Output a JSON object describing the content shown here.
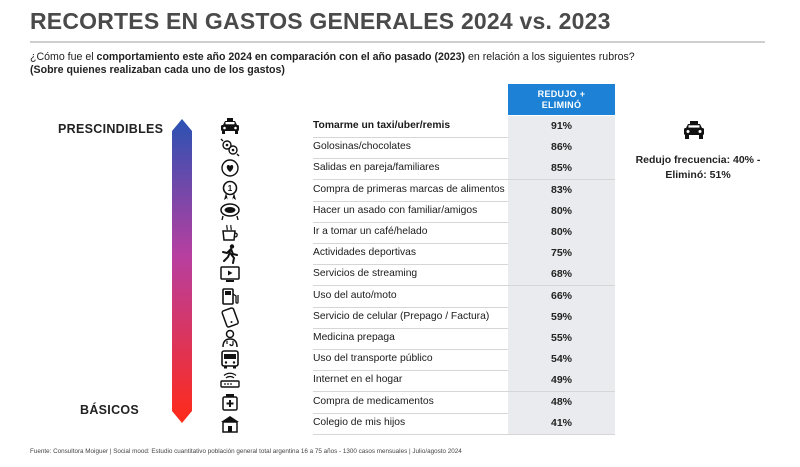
{
  "title": "RECORTES EN GASTOS GENERALES 2024 vs. 2023",
  "question": {
    "prefix": "¿Cómo fue el ",
    "bold": "comportamiento este año 2024 en comparación con el año pasado (2023)",
    "suffix": " en relación a los siguientes rubros?"
  },
  "note": "(Sobre quienes realizaban cada uno de los gastos)",
  "column_header": [
    "REDUJO +",
    "ELIMINÓ"
  ],
  "scale_top_label": "PRESCINDIBLES",
  "scale_bottom_label": "BÁSICOS",
  "side_note": "Redujo frecuencia: 40% - Eliminó: 51%",
  "source": "Fuente: Consultora Moiguer | Social mood: Estudio cuantitativo población general total argentina 16 a 75 años - 1300 casos mensuales |  Julio/agosto 2024",
  "colors": {
    "header_blue": "#1d82d6",
    "cell_bg": "#e9ebee",
    "gradient_top": "#2a52b3",
    "gradient_bottom": "#ff2a18"
  },
  "chart_data": {
    "type": "table",
    "title": "RECORTES EN GASTOS GENERALES 2024 vs. 2023",
    "column": "REDUJO + ELIMINÓ",
    "rows": [
      {
        "label": "Tomarme un taxi/uber/remis",
        "value": "91%",
        "icon": "taxi-icon",
        "bold": true
      },
      {
        "label": "Golosinas/chocolates",
        "value": "86%",
        "icon": "candy-icon",
        "bold": false
      },
      {
        "label": "Salidas en pareja/familiares",
        "value": "85%",
        "icon": "heart-outing-icon",
        "bold": false
      },
      {
        "label": "Compra de primeras marcas de alimentos",
        "value": "83%",
        "icon": "brand-badge-icon",
        "bold": false
      },
      {
        "label": "Hacer un asado con familiar/amigos",
        "value": "80%",
        "icon": "grill-icon",
        "bold": false
      },
      {
        "label": "Ir a tomar un café/helado",
        "value": "80%",
        "icon": "coffee-icon",
        "bold": false
      },
      {
        "label": "Actividades deportivas",
        "value": "75%",
        "icon": "runner-icon",
        "bold": false
      },
      {
        "label": "Servicios de streaming",
        "value": "68%",
        "icon": "tv-icon",
        "bold": false
      },
      {
        "label": "Uso del auto/moto",
        "value": "66%",
        "icon": "fuel-pump-icon",
        "bold": false
      },
      {
        "label": "Servicio de celular (Prepago / Factura)",
        "value": "59%",
        "icon": "phone-icon",
        "bold": false
      },
      {
        "label": "Medicina prepaga",
        "value": "55%",
        "icon": "doctor-icon",
        "bold": false
      },
      {
        "label": "Uso del transporte público",
        "value": "54%",
        "icon": "bus-icon",
        "bold": false
      },
      {
        "label": "Internet en el hogar",
        "value": "49%",
        "icon": "router-icon",
        "bold": false
      },
      {
        "label": "Compra de medicamentos",
        "value": "48%",
        "icon": "medicine-icon",
        "bold": false
      },
      {
        "label": "Colegio de mis hijos",
        "value": "41%",
        "icon": "school-icon",
        "bold": false
      }
    ]
  }
}
